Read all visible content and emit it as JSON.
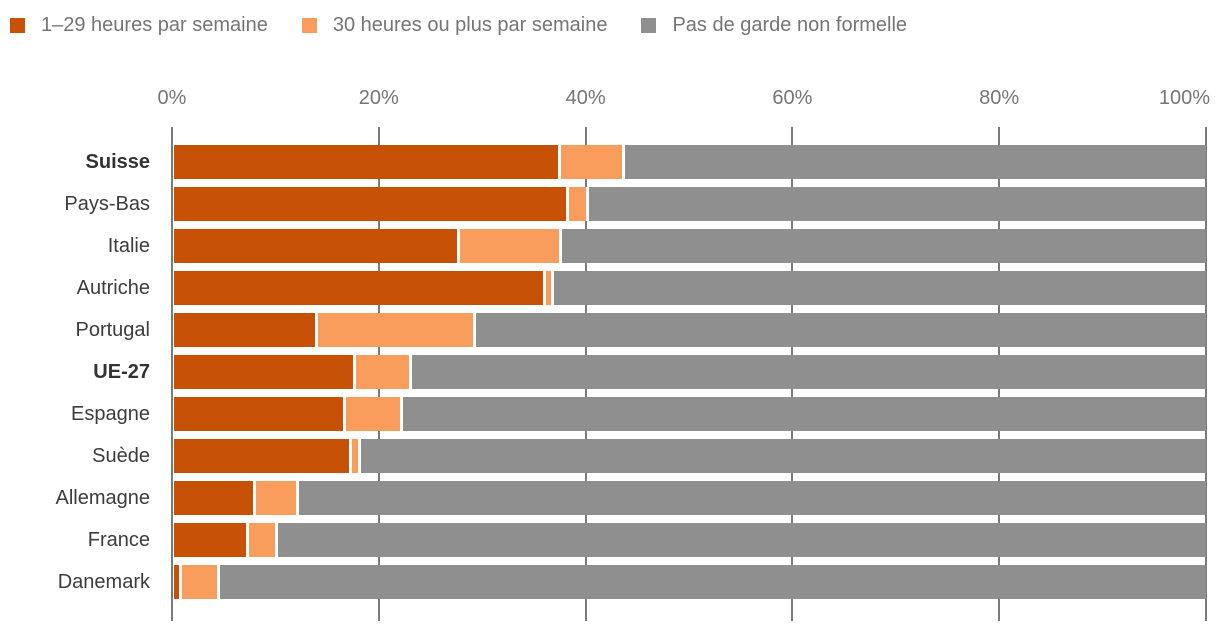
{
  "legend": {
    "items": [
      {
        "name": "legend-item-1-29h",
        "label": "1–29 heures par semaine",
        "color": "#c75106"
      },
      {
        "name": "legend-item-30h-plus",
        "label": "30 heures ou plus par semaine",
        "color": "#f89d5b"
      },
      {
        "name": "legend-item-no-informal-care",
        "label": "Pas de garde non formelle",
        "color": "#8f8f8f"
      }
    ]
  },
  "axis": {
    "tick_labels": [
      "0%",
      "20%",
      "40%",
      "60%",
      "80%",
      "100%"
    ],
    "tick_values": [
      0,
      20,
      40,
      60,
      80,
      100
    ]
  },
  "chart_data": {
    "type": "bar",
    "orientation": "horizontal",
    "stacked": true,
    "xlim": [
      0,
      100
    ],
    "xticks": [
      0,
      20,
      40,
      60,
      80,
      100
    ],
    "grid": true,
    "legend_position": "top",
    "categories": [
      "Suisse",
      "Pays-Bas",
      "Italie",
      "Autriche",
      "Portugal",
      "UE-27",
      "Espagne",
      "Suède",
      "Allemagne",
      "France",
      "Danemark"
    ],
    "bold_categories": [
      "Suisse",
      "UE-27"
    ],
    "series": [
      {
        "name": "1–29 heures par semaine",
        "color": "#c75106",
        "values": [
          37.2,
          38.0,
          27.4,
          35.8,
          13.7,
          17.3,
          16.4,
          17.0,
          7.7,
          7.0,
          0.5
        ]
      },
      {
        "name": "30 heures ou plus par semaine",
        "color": "#f89d5b",
        "values": [
          6.2,
          1.9,
          9.9,
          0.7,
          15.3,
          5.5,
          5.5,
          0.8,
          4.1,
          2.8,
          3.7
        ]
      },
      {
        "name": "Pas de garde non formelle",
        "color": "#8f8f8f",
        "values": [
          56.6,
          60.1,
          62.7,
          63.5,
          71.0,
          77.2,
          78.1,
          82.2,
          88.2,
          90.2,
          95.8
        ]
      }
    ]
  },
  "colors": {
    "background": "#ffffff",
    "gridline": "#7a7a7a",
    "axis_text": "#757575",
    "legend_text": "#757575",
    "category_text": "#3c3c3c"
  }
}
